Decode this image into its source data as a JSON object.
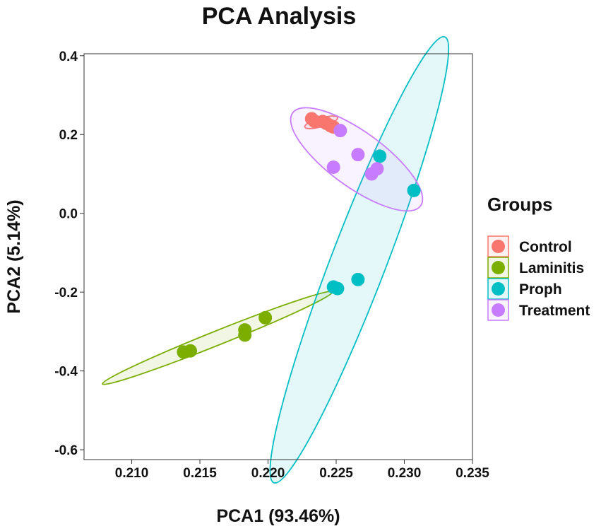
{
  "chart_data": {
    "type": "scatter",
    "title": "PCA Analysis",
    "xlabel": "PCA1 (93.46%)",
    "ylabel": "PCA2 (5.14%)",
    "xlim": [
      0.2065,
      0.235
    ],
    "ylim": [
      -0.625,
      0.405
    ],
    "x_ticks": [
      0.21,
      0.215,
      0.22,
      0.225,
      0.23,
      0.235
    ],
    "x_tick_labels": [
      "0.210",
      "0.215",
      "0.220",
      "0.225",
      "0.230",
      "0.235"
    ],
    "y_ticks": [
      0.4,
      0.2,
      0.0,
      -0.2,
      -0.4,
      -0.6
    ],
    "y_tick_labels": [
      "0.4",
      "0.2",
      "0.0",
      "-0.2",
      "-0.4",
      "-0.6"
    ],
    "grid": false,
    "legend": {
      "title": "Groups",
      "position": "right"
    },
    "series": [
      {
        "name": "Control",
        "color": "#F8766D",
        "points": [
          [
            0.2232,
            0.24
          ],
          [
            0.2234,
            0.234
          ],
          [
            0.224,
            0.233
          ],
          [
            0.2243,
            0.228
          ],
          [
            0.2246,
            0.222
          ],
          [
            0.2248,
            0.219
          ]
        ],
        "ellipse": {
          "center": [
            0.2239,
            0.231
          ],
          "angle_deg": -16,
          "rx_data_x": 0.00125,
          "ry_data_y": 0.011
        }
      },
      {
        "name": "Laminitis",
        "color": "#7CAE00",
        "points": [
          [
            0.2138,
            -0.352
          ],
          [
            0.2143,
            -0.349
          ],
          [
            0.2183,
            -0.296
          ],
          [
            0.2183,
            -0.309
          ],
          [
            0.2198,
            -0.265
          ]
        ],
        "ellipse": {
          "center": [
            0.2163,
            -0.316
          ],
          "angle_deg": -21.8,
          "rx_data_x": 0.0091,
          "ry_data_y": 0.018
        }
      },
      {
        "name": "Proph",
        "color": "#00BFC4",
        "points": [
          [
            0.2248,
            -0.187
          ],
          [
            0.2251,
            -0.191
          ],
          [
            0.2266,
            -0.168
          ],
          [
            0.2282,
            0.145
          ],
          [
            0.2307,
            0.058
          ]
        ],
        "ellipse": {
          "center": [
            0.2267,
            -0.118
          ],
          "angle_deg": -69,
          "rx_data_x": 0.0175,
          "ry_data_y": 0.07
        }
      },
      {
        "name": "Treatment",
        "color": "#C77CFF",
        "points": [
          [
            0.2253,
            0.21
          ],
          [
            0.2266,
            0.149
          ],
          [
            0.2248,
            0.117
          ],
          [
            0.2276,
            0.1
          ],
          [
            0.228,
            0.113
          ]
        ],
        "ellipse": {
          "center": [
            0.2265,
            0.137
          ],
          "angle_deg": 36,
          "rx_data_x": 0.0058,
          "ry_data_y": 0.07
        }
      }
    ]
  }
}
